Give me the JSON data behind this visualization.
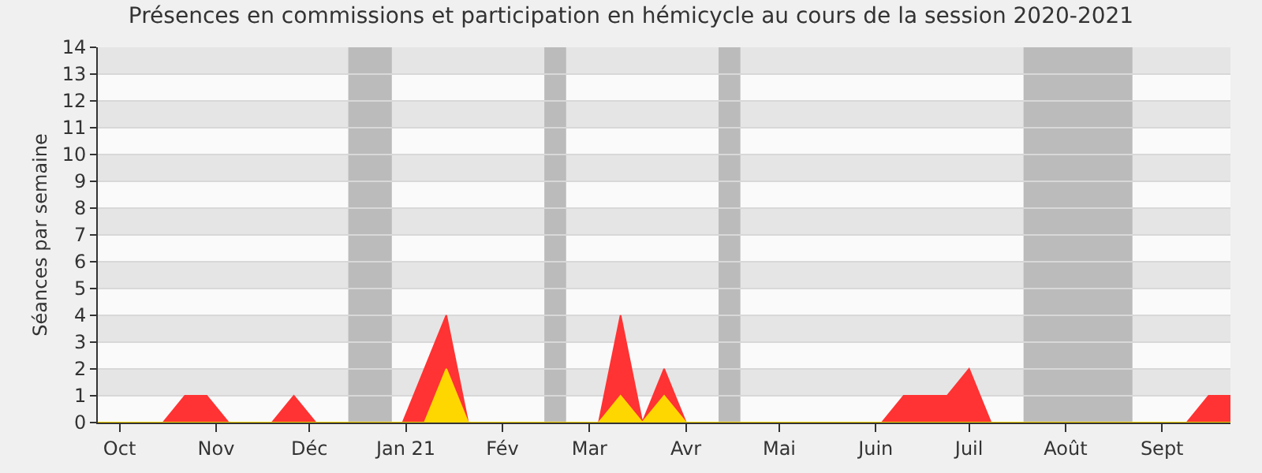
{
  "chart_data": {
    "type": "area",
    "title": "Présences en commissions et participation en hémicycle au cours de la session 2020-2021",
    "ylabel": "Séances par semaine",
    "x": [
      "2020-09-24",
      "2020-10-01",
      "2020-10-08",
      "2020-10-15",
      "2020-10-22",
      "2020-10-29",
      "2020-11-05",
      "2020-11-12",
      "2020-11-19",
      "2020-11-26",
      "2020-12-03",
      "2020-12-10",
      "2020-12-17",
      "2020-12-24",
      "2020-12-31",
      "2021-01-07",
      "2021-01-14",
      "2021-01-21",
      "2021-01-28",
      "2021-02-04",
      "2021-02-11",
      "2021-02-18",
      "2021-02-25",
      "2021-03-04",
      "2021-03-11",
      "2021-03-18",
      "2021-03-25",
      "2021-04-01",
      "2021-04-08",
      "2021-04-15",
      "2021-04-22",
      "2021-04-29",
      "2021-05-06",
      "2021-05-13",
      "2021-05-20",
      "2021-05-27",
      "2021-06-03",
      "2021-06-10",
      "2021-06-17",
      "2021-06-24",
      "2021-07-01",
      "2021-07-08",
      "2021-07-15",
      "2021-07-22",
      "2021-07-29",
      "2021-08-05",
      "2021-08-12",
      "2021-08-19",
      "2021-08-26",
      "2021-09-02",
      "2021-09-09",
      "2021-09-16",
      "2021-09-23"
    ],
    "series": [
      {
        "color": "#ff3333",
        "values": [
          0,
          0,
          0,
          0,
          1,
          1,
          0,
          0,
          0,
          1,
          0,
          0,
          0,
          0,
          0,
          2,
          4,
          0,
          0,
          0,
          0,
          0,
          0,
          0,
          4,
          0,
          2,
          0,
          0,
          0,
          0,
          0,
          0,
          0,
          0,
          0,
          0,
          1,
          1,
          1,
          2,
          0,
          0,
          0,
          0,
          0,
          0,
          0,
          0,
          0,
          0,
          1,
          1
        ]
      },
      {
        "color": "#ffd700",
        "values": [
          0,
          0,
          0,
          0,
          0,
          0,
          0,
          0,
          0,
          0,
          0,
          0,
          0,
          0,
          0,
          0,
          2,
          0,
          0,
          0,
          0,
          0,
          0,
          0,
          1,
          0,
          1,
          0,
          0,
          0,
          0,
          0,
          0,
          0,
          0,
          0,
          0,
          0,
          0,
          0,
          0,
          0,
          0,
          0,
          0,
          0,
          0,
          0,
          0,
          0,
          0,
          0,
          0
        ]
      }
    ],
    "xlim": [
      "2020-09-24",
      "2021-09-23"
    ],
    "xticks": [
      {
        "value": "2020-10-01",
        "label": "Oct"
      },
      {
        "value": "2020-11-01",
        "label": "Nov"
      },
      {
        "value": "2020-12-01",
        "label": "Déc"
      },
      {
        "value": "2021-01-01",
        "label": "Jan 21"
      },
      {
        "value": "2021-02-01",
        "label": "Fév"
      },
      {
        "value": "2021-03-01",
        "label": "Mar"
      },
      {
        "value": "2021-04-01",
        "label": "Avr"
      },
      {
        "value": "2021-05-01",
        "label": "Mai"
      },
      {
        "value": "2021-06-01",
        "label": "Juin"
      },
      {
        "value": "2021-07-01",
        "label": "Juil"
      },
      {
        "value": "2021-08-01",
        "label": "Août"
      },
      {
        "value": "2021-09-01",
        "label": "Sept"
      }
    ],
    "ylim": [
      0,
      14
    ],
    "yticks": [
      0,
      1,
      2,
      3,
      4,
      5,
      6,
      7,
      8,
      9,
      10,
      11,
      12,
      13,
      14
    ],
    "bands": [
      {
        "axis": "x",
        "from": "2020-12-13T12:00",
        "to": "2020-12-27T12:00",
        "color": "#bbbbbb"
      },
      {
        "axis": "x",
        "from": "2021-02-14T12:00",
        "to": "2021-02-21T12:00",
        "color": "#bbbbbb"
      },
      {
        "axis": "x",
        "from": "2021-04-11T12:00",
        "to": "2021-04-18T12:00",
        "color": "#bbbbbb"
      },
      {
        "axis": "x",
        "from": "2021-07-18T12:00",
        "to": "2021-08-22T12:00",
        "color": "#bbbbbb"
      }
    ],
    "grid": "y"
  }
}
